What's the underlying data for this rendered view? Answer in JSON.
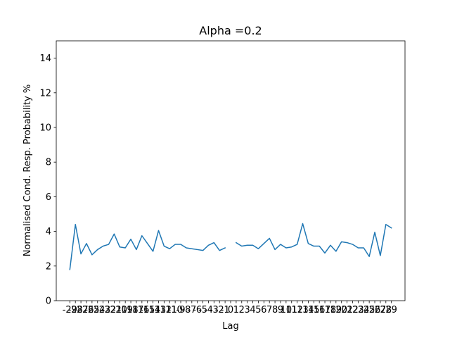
{
  "chart_data": {
    "type": "line",
    "title": "Alpha =0.2",
    "xlabel": "Lag",
    "ylabel": "Normalised Cond. Resp. Probability %",
    "xlim": [
      -31.45,
      31.45
    ],
    "ylim": [
      0,
      15
    ],
    "yticks": [
      0,
      2,
      4,
      6,
      8,
      10,
      12,
      14
    ],
    "xticks": [
      -29,
      -28,
      -27,
      -26,
      -25,
      -24,
      -23,
      -22,
      -21,
      -20,
      -19,
      -18,
      -17,
      -16,
      -15,
      -14,
      -13,
      -12,
      -11,
      -10,
      -9,
      -8,
      -7,
      -6,
      -5,
      -4,
      -3,
      -2,
      -1,
      0,
      1,
      2,
      3,
      4,
      5,
      6,
      7,
      8,
      9,
      10,
      11,
      12,
      13,
      14,
      15,
      16,
      17,
      18,
      19,
      20,
      21,
      22,
      23,
      24,
      25,
      26,
      27,
      28,
      29
    ],
    "series": [
      {
        "color": "#1f77b4",
        "x": [
          -29,
          -28,
          -27,
          -26,
          -25,
          -24,
          -23,
          -22,
          -21,
          -20,
          -19,
          -18,
          -17,
          -16,
          -15,
          -14,
          -13,
          -12,
          -11,
          -10,
          -9,
          -8,
          -7,
          -6,
          -5,
          -4,
          -3,
          -2,
          -1,
          0,
          1,
          2,
          3,
          4,
          5,
          6,
          7,
          8,
          9,
          10,
          11,
          12,
          13,
          14,
          15,
          16,
          17,
          18,
          19,
          20,
          21,
          22,
          23,
          24,
          25,
          26,
          27,
          28,
          29
        ],
        "y": [
          1.8,
          4.4,
          2.7,
          3.3,
          2.65,
          2.95,
          3.15,
          3.25,
          3.85,
          3.1,
          3.05,
          3.55,
          2.95,
          3.75,
          3.3,
          2.85,
          4.05,
          3.15,
          3.0,
          3.25,
          3.25,
          3.05,
          3.0,
          2.95,
          2.9,
          3.2,
          3.35,
          2.9,
          3.05,
          null,
          3.35,
          3.15,
          3.2,
          3.2,
          3.0,
          3.3,
          3.6,
          2.95,
          3.25,
          3.05,
          3.1,
          3.25,
          4.45,
          3.3,
          3.15,
          3.15,
          2.75,
          3.2,
          2.85,
          3.4,
          3.35,
          3.25,
          3.05,
          3.05,
          2.55,
          3.95,
          2.6,
          4.4,
          4.2
        ]
      }
    ]
  }
}
